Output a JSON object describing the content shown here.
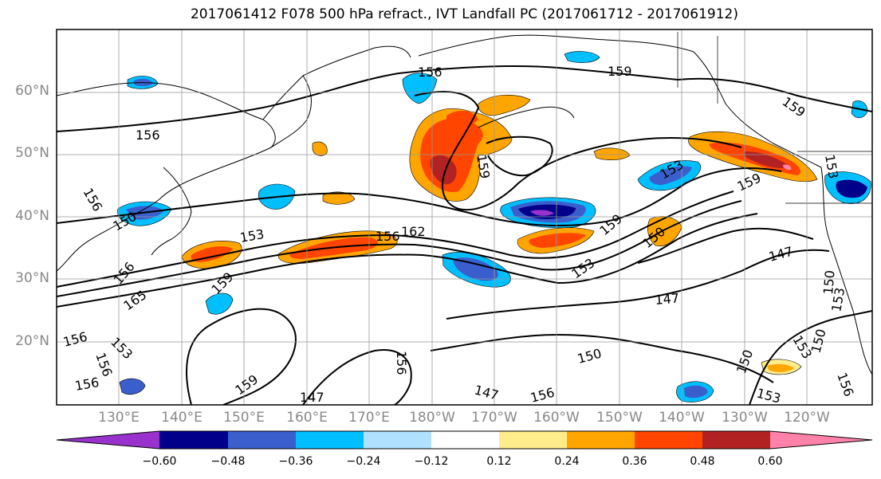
{
  "title": "2017061412 F078 500 hPa refract., IVT Landfall PC (2017061712 - 2017061912)",
  "lat_labels": [
    "60°N",
    "50°N",
    "40°N",
    "30°N",
    "20°N"
  ],
  "lon_labels": [
    "130°E",
    "140°E",
    "150°E",
    "160°E",
    "170°E",
    "180°W",
    "170°W",
    "160°W",
    "150°W",
    "140°W",
    "130°W",
    "120°W"
  ],
  "colorbar": {
    "colors": [
      "#9932cc",
      "#00008b",
      "#3a5fcd",
      "#00bfff",
      "#b0e2ff",
      "#ffffff",
      "#ffec8b",
      "#ffa500",
      "#ff4500",
      "#b22222",
      "#ff82ab"
    ],
    "tick_labels": [
      "−0.60",
      "−0.48",
      "−0.36",
      "−0.24",
      "−0.12",
      "0.12",
      "0.24",
      "0.36",
      "0.48",
      "0.60"
    ]
  },
  "contour_labels": [
    "156",
    "159",
    "159",
    "156",
    "156",
    "150",
    "153",
    "159",
    "153",
    "159",
    "162",
    "156",
    "165",
    "156",
    "153",
    "159",
    "150",
    "153",
    "147",
    "147",
    "153",
    "150",
    "159",
    "150",
    "147",
    "156",
    "159",
    "156",
    "153",
    "150",
    "153",
    "156",
    "156",
    "147",
    "153",
    "156",
    "156",
    "150"
  ]
}
